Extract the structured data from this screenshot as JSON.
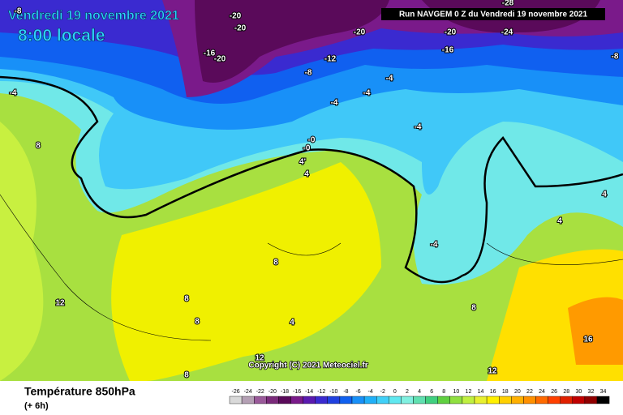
{
  "header": {
    "date": "Vendredi 19 novembre 2021",
    "time": "8:00 locale",
    "run": "Run NAVGEM 0 Z du Vendredi 19 novembre 2021"
  },
  "footer": {
    "title": "Température 850hPa",
    "offset": "(+ 6h)",
    "copyright": "Copyright (C) 2021 Meteociel.fr"
  },
  "legend": {
    "ticks": [
      -26,
      -24,
      -22,
      -20,
      -18,
      -16,
      -14,
      -12,
      -10,
      -8,
      -6,
      -4,
      -2,
      0,
      2,
      4,
      6,
      8,
      10,
      12,
      14,
      16,
      18,
      20,
      22,
      24,
      26,
      28,
      30,
      32,
      34
    ],
    "colors": [
      "#d9d9d9",
      "#b4a0b4",
      "#9a5a9a",
      "#7a2a7a",
      "#5a0a5a",
      "#7a1a8a",
      "#5a1ab0",
      "#3a2ad0",
      "#2040e0",
      "#1060f0",
      "#1890f8",
      "#20b0f8",
      "#40d0f8",
      "#60e8f0",
      "#80f0e0",
      "#60e0b0",
      "#40d080",
      "#60d040",
      "#90e040",
      "#c0f040",
      "#e8f030",
      "#fff000",
      "#ffd000",
      "#ffb000",
      "#ff9000",
      "#ff6a00",
      "#ff4000",
      "#e02000",
      "#c00000",
      "#900000",
      "#000000"
    ]
  },
  "contour_labels": [
    "-8",
    "-20",
    "-20",
    "-20",
    "-20",
    "-24",
    "-28",
    "-16",
    "-20",
    "-12",
    "-16",
    "-8",
    "-8",
    "-4",
    "-4",
    "-4",
    "-4",
    "-4",
    "8",
    "-0",
    "-0",
    "4'",
    "4",
    "-4",
    "4",
    "4",
    "8",
    "12",
    "8",
    "8",
    "4",
    "8",
    "12",
    "12",
    "16",
    "8"
  ]
}
